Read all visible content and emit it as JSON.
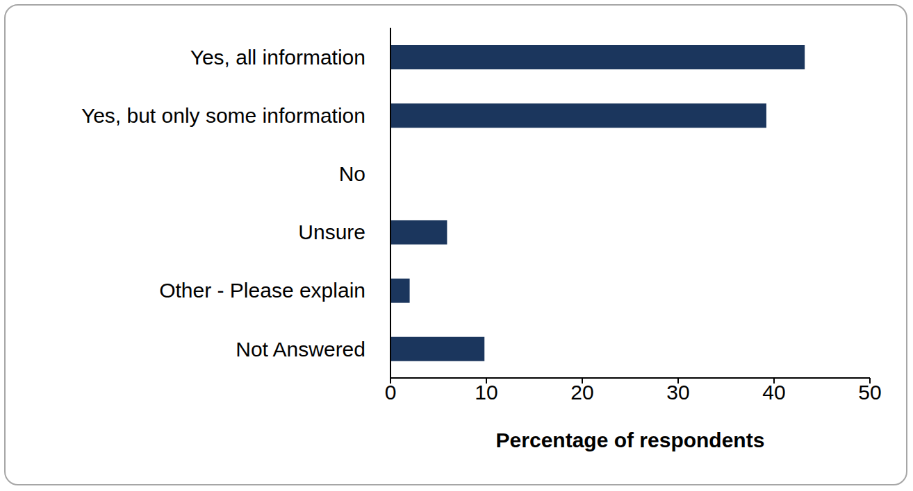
{
  "chart_data": {
    "type": "bar",
    "orientation": "horizontal",
    "categories": [
      "Yes, all information",
      "Yes, but only some information",
      "No",
      "Unsure",
      "Other - Please explain",
      "Not Answered"
    ],
    "values": [
      43.2,
      39.2,
      0,
      5.9,
      2.0,
      9.8
    ],
    "color": "#1b365d",
    "x_label": "Percentage of respondents",
    "xlim": [
      0,
      50
    ],
    "xticks": [
      0,
      10,
      20,
      30,
      40,
      50
    ],
    "grid": false
  }
}
